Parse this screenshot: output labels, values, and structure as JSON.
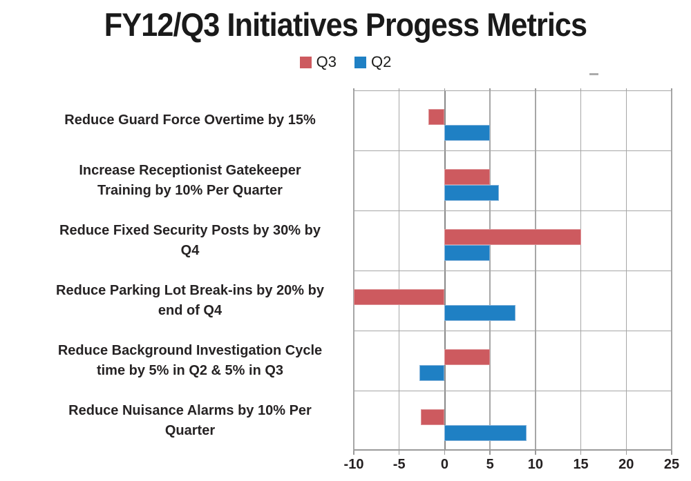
{
  "chart_data": {
    "type": "bar",
    "orientation": "horizontal",
    "title": "FY12/Q3 Initiatives Progess Metrics",
    "categories": [
      "Reduce Guard Force Overtime by 15%",
      "Increase Receptionist Gatekeeper\nTraining by 10% Per Quarter",
      "Reduce Fixed Security Posts by 30% by\nQ4",
      "Reduce Parking Lot Break-ins by 20% by\nend of Q4",
      "Reduce Background Investigation Cycle\ntime by 5% in Q2 & 5% in Q3",
      "Reduce Nuisance Alarms by 10% Per\nQuarter"
    ],
    "series": [
      {
        "name": "Q3",
        "color": "#cd5a5f",
        "values": [
          -1.8,
          5,
          15,
          -10,
          5,
          -2.6
        ]
      },
      {
        "name": "Q2",
        "color": "#1f80c4",
        "values": [
          5,
          6,
          5,
          7.8,
          -2.8,
          9
        ]
      }
    ],
    "xlim": [
      -10,
      25
    ],
    "xticks": [
      -10,
      -5,
      0,
      5,
      10,
      15,
      20,
      25
    ],
    "grid": true,
    "gridline_color": "#a6a6a6",
    "legend_position": "top-center"
  }
}
